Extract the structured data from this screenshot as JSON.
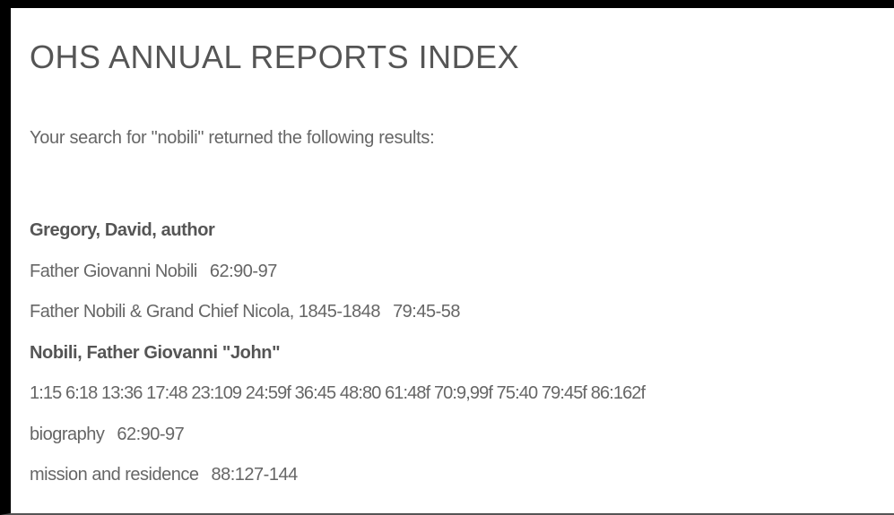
{
  "header": {
    "title": "OHS ANNUAL REPORTS INDEX"
  },
  "search_summary": "Your search for \"nobili\" returned the following results:",
  "entries": [
    {
      "heading": "Gregory, David, author",
      "items": [
        {
          "label": "Father Giovanni Nobili",
          "ref": "62:90-97"
        },
        {
          "label": "Father Nobili & Grand Chief Nicola, 1845-1848",
          "ref": "79:45-58"
        }
      ]
    },
    {
      "heading": "Nobili, Father Giovanni \"John\"",
      "items": [
        {
          "ref": "1:15 6:18 13:36 17:48 23:109 24:59f 36:45 48:80 61:48f 70:9,99f 75:40 79:45f 86:162f"
        },
        {
          "label": "biography",
          "ref": "62:90-97"
        },
        {
          "label": "mission and residence",
          "ref": "88:127-144"
        }
      ]
    }
  ]
}
